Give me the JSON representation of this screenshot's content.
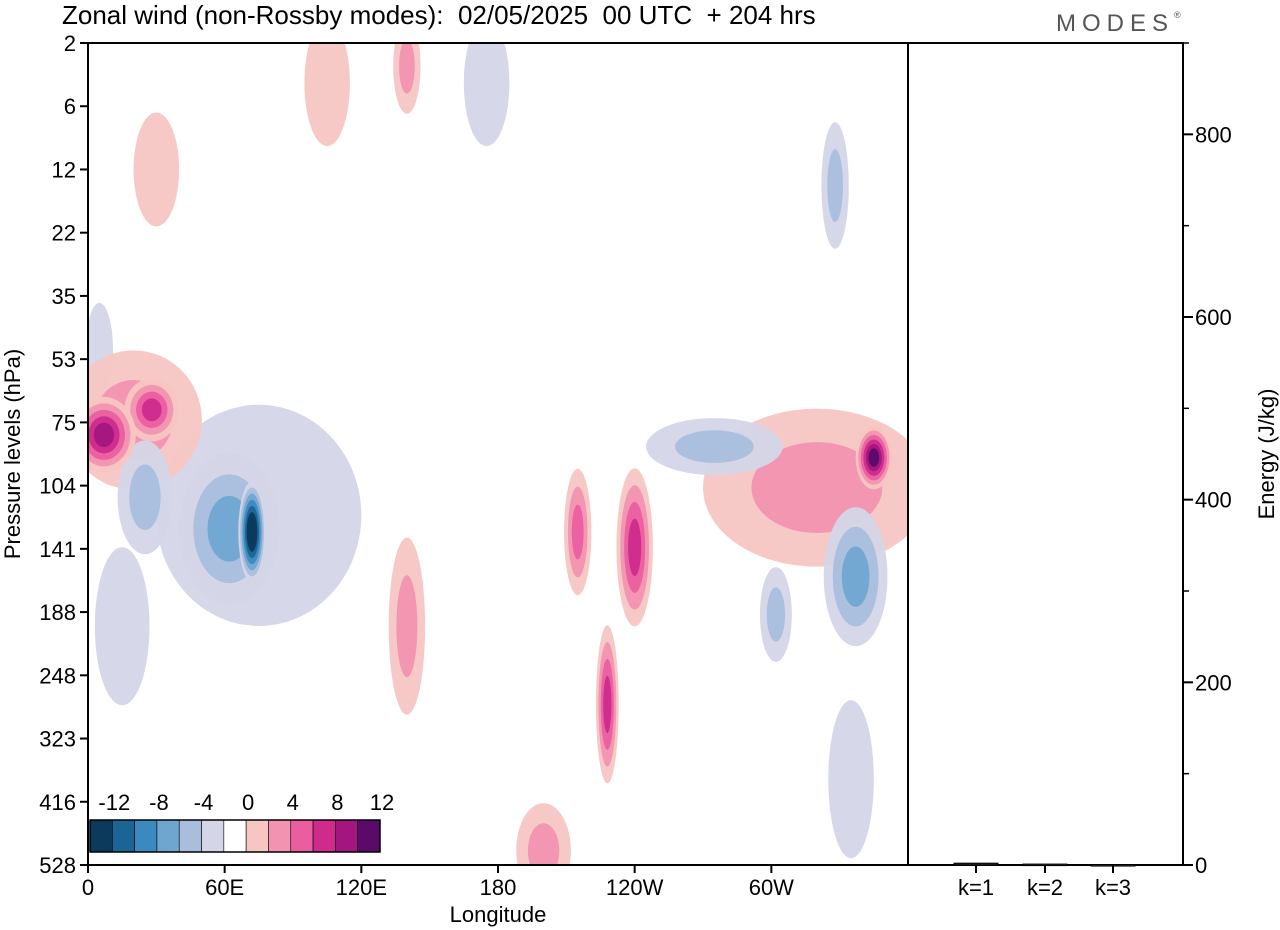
{
  "title": "Zonal wind (non-Rossby modes):  02/05/2025  00 UTC  + 204 hrs",
  "logo": "MODES",
  "logo_mark": "®",
  "chart_data": [
    {
      "type": "heatmap",
      "xlabel": "Longitude",
      "ylabel": "Pressure levels (hPa)",
      "x_tick_labels": [
        "0",
        "60E",
        "120E",
        "180",
        "120W",
        "60W"
      ],
      "x_tick_values_deg": [
        0,
        60,
        120,
        180,
        240,
        300
      ],
      "xlim_deg": [
        0,
        360
      ],
      "y_tick_labels": [
        "2",
        "6",
        "12",
        "22",
        "35",
        "53",
        "75",
        "104",
        "141",
        "188",
        "248",
        "323",
        "416",
        "528"
      ],
      "colorbar": {
        "labels": [
          "-12",
          "-8",
          "-4",
          "0",
          "4",
          "8",
          "12"
        ],
        "levels": [
          -14,
          -12,
          -10,
          -8,
          -6,
          -4,
          -2,
          2,
          4,
          6,
          8,
          10,
          12,
          14
        ],
        "colors": [
          "#0c3a5c",
          "#1a6496",
          "#3a89bf",
          "#6fa6d0",
          "#a9bedd",
          "#d4d6e8",
          "#ffffff",
          "#f7c6c3",
          "#f293b1",
          "#ea5ea0",
          "#cf2b8d",
          "#a3167f",
          "#5a0a68"
        ]
      },
      "features": [
        {
          "lon": 7,
          "plev": 80,
          "value": 10,
          "lon_w": 14,
          "plev_w": 1.2
        },
        {
          "lon": 28,
          "plev": 70,
          "value": 9,
          "lon_w": 12,
          "plev_w": 1
        },
        {
          "lon": 20,
          "plev": 74,
          "value": 4,
          "lon_w": 30,
          "plev_w": 2.2
        },
        {
          "lon": 72,
          "plev": 130,
          "value": -14,
          "lon_w": 6,
          "plev_w": 1.6
        },
        {
          "lon": 62,
          "plev": 128,
          "value": -7,
          "lon_w": 22,
          "plev_w": 2.4
        },
        {
          "lon": 75,
          "plev": 120,
          "value": -3,
          "lon_w": 45,
          "plev_w": 3.5
        },
        {
          "lon": 25,
          "plev": 110,
          "value": -5,
          "lon_w": 12,
          "plev_w": 1.8
        },
        {
          "lon": 345,
          "plev": 90,
          "value": 12,
          "lon_w": 8,
          "plev_w": 1
        },
        {
          "lon": 320,
          "plev": 105,
          "value": 4,
          "lon_w": 50,
          "plev_w": 2.5
        },
        {
          "lon": 337,
          "plev": 160,
          "value": -6,
          "lon_w": 14,
          "plev_w": 2.2
        },
        {
          "lon": 302,
          "plev": 190,
          "value": -5,
          "lon_w": 7,
          "plev_w": 1.5
        },
        {
          "lon": 240,
          "plev": 140,
          "value": 8,
          "lon_w": 8,
          "plev_w": 2.5
        },
        {
          "lon": 228,
          "plev": 280,
          "value": 8,
          "lon_w": 5,
          "plev_w": 2.5
        },
        {
          "lon": 215,
          "plev": 130,
          "value": 6,
          "lon_w": 6,
          "plev_w": 2
        },
        {
          "lon": 275,
          "plev": 85,
          "value": -4,
          "lon_w": 30,
          "plev_w": 0.9
        },
        {
          "lon": 15,
          "plev": 200,
          "value": -3,
          "lon_w": 12,
          "plev_w": 2.5
        },
        {
          "lon": 140,
          "plev": 200,
          "value": 4,
          "lon_w": 8,
          "plev_w": 2.8
        },
        {
          "lon": 175,
          "plev": 4,
          "value": -3,
          "lon_w": 10,
          "plev_w": 2
        },
        {
          "lon": 140,
          "plev": 3,
          "value": 4,
          "lon_w": 6,
          "plev_w": 1.5
        },
        {
          "lon": 328,
          "plev": 14,
          "value": -5,
          "lon_w": 6,
          "plev_w": 2
        },
        {
          "lon": 335,
          "plev": 380,
          "value": -3,
          "lon_w": 10,
          "plev_w": 2.5
        },
        {
          "lon": 200,
          "plev": 500,
          "value": 4,
          "lon_w": 12,
          "plev_w": 1.5
        },
        {
          "lon": 5,
          "plev": 50,
          "value": -3,
          "lon_w": 6,
          "plev_w": 1.5
        },
        {
          "lon": 30,
          "plev": 12,
          "value": 3,
          "lon_w": 10,
          "plev_w": 1.8
        },
        {
          "lon": 105,
          "plev": 4,
          "value": 3,
          "lon_w": 10,
          "plev_w": 2
        }
      ]
    },
    {
      "type": "bar",
      "categories": [
        "k=1",
        "k=2",
        "k=3"
      ],
      "values": [
        2,
        1,
        0.5
      ],
      "ylabel": "Energy (J/kg)",
      "ylim": [
        0,
        900
      ],
      "y_tick_labels": [
        "0",
        "200",
        "400",
        "600",
        "800"
      ],
      "y_tick_values": [
        0,
        200,
        400,
        600,
        800
      ],
      "y_minor_values": [
        100,
        300,
        500,
        700,
        900
      ]
    }
  ]
}
